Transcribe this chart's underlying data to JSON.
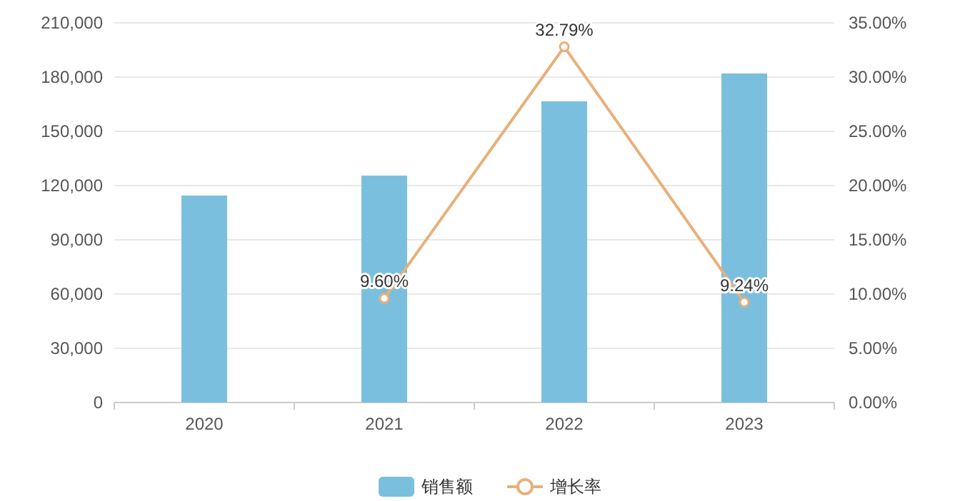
{
  "chart_data": {
    "type": "bar",
    "categories": [
      "2020",
      "2021",
      "2022",
      "2023"
    ],
    "series": [
      {
        "name": "销售额",
        "color": "#7bbfde",
        "values": [
          114500,
          125500,
          166600,
          182000
        ]
      },
      {
        "name": "增长率",
        "type": "line",
        "axis": "y2",
        "color": "#e8b07a",
        "values": [
          null,
          9.6,
          32.79,
          9.24
        ],
        "value_labels": [
          null,
          "9.60%",
          "32.79%",
          "9.24%"
        ]
      }
    ],
    "ylim": [
      0,
      210000
    ],
    "yticks": [
      {
        "value": 0,
        "label": "0"
      },
      {
        "value": 30000,
        "label": "30,000"
      },
      {
        "value": 60000,
        "label": "60,000"
      },
      {
        "value": 90000,
        "label": "90,000"
      },
      {
        "value": 120000,
        "label": "120,000"
      },
      {
        "value": 150000,
        "label": "150,000"
      },
      {
        "value": 180000,
        "label": "180,000"
      },
      {
        "value": 210000,
        "label": "210,000"
      }
    ],
    "y2lim": [
      0,
      35
    ],
    "y2ticks": [
      {
        "value": 0,
        "label": "0.00%"
      },
      {
        "value": 5,
        "label": "5.00%"
      },
      {
        "value": 10,
        "label": "10.00%"
      },
      {
        "value": 15,
        "label": "15.00%"
      },
      {
        "value": 20,
        "label": "20.00%"
      },
      {
        "value": 25,
        "label": "25.00%"
      },
      {
        "value": 30,
        "label": "30.00%"
      },
      {
        "value": 35,
        "label": "35.00%"
      }
    ],
    "grid": "y",
    "legend": "bottom",
    "marker": "circle"
  }
}
